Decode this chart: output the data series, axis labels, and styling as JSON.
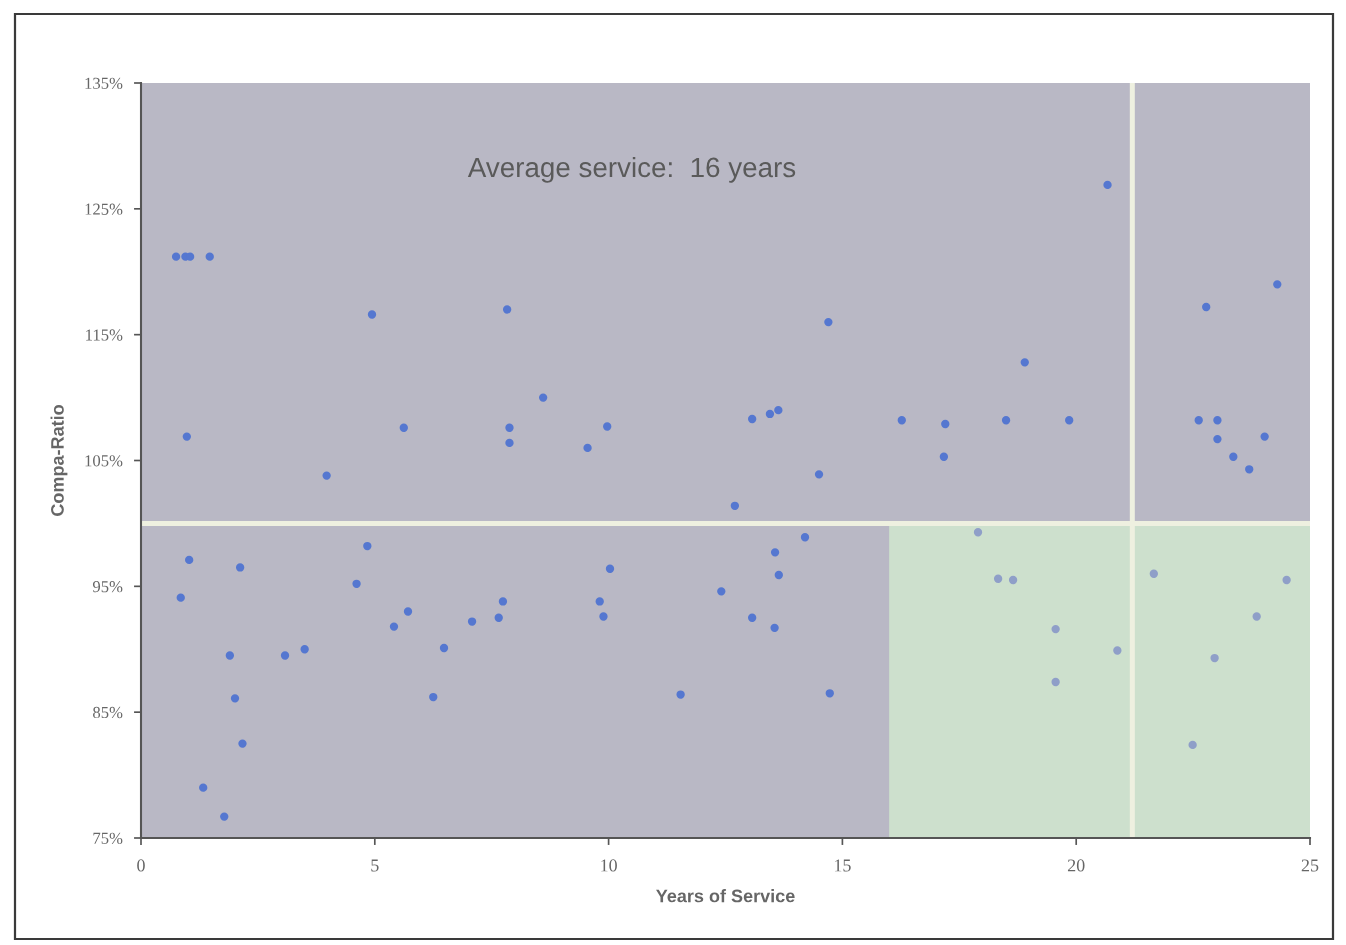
{
  "chart_data": {
    "type": "scatter",
    "xlabel": "Years of Service",
    "ylabel": "Compa-Ratio",
    "annotations": [
      "Average service:  16 years"
    ],
    "xlim": [
      0,
      25
    ],
    "xticks": [
      0,
      5,
      10,
      15,
      20,
      25
    ],
    "ylim": [
      75,
      135
    ],
    "yticks": [
      {
        "value": 75,
        "label": "75%"
      },
      {
        "value": 85,
        "label": "85%"
      },
      {
        "value": 95,
        "label": "95%"
      },
      {
        "value": 105,
        "label": "105%"
      },
      {
        "value": 115,
        "label": "115%"
      },
      {
        "value": 125,
        "label": "125%"
      },
      {
        "value": 135,
        "label": "135%"
      }
    ],
    "marker": "circle",
    "bands": [
      {
        "axis": "x",
        "from": 0,
        "to": 16,
        "color": "#b9b8c5"
      },
      {
        "axis": "y",
        "from": 100,
        "to": 135,
        "color": "#b9b8c5"
      }
    ],
    "ref_lines": [
      {
        "axis": "y",
        "value": 100,
        "color": "#eef0e0"
      },
      {
        "axis": "x",
        "value": 21.2,
        "color": "#eef0e0"
      }
    ],
    "series": [
      {
        "color": "#5577d0",
        "x": [
          0.75,
          0.95,
          1.05,
          1.47,
          4.94,
          7.83,
          8.6,
          5.62,
          7.88,
          7.88,
          9.55,
          9.97,
          0.98,
          3.97,
          1.03,
          2.12,
          0.85,
          4.84,
          4.61,
          5.71,
          5.41,
          7.74,
          7.65,
          7.08,
          9.81,
          9.89,
          10.03,
          1.9,
          3.08,
          3.5,
          6.48,
          2.01,
          6.25,
          2.17,
          1.33,
          1.78,
          14.7,
          18.9,
          13.07,
          13.45,
          13.63,
          16.27,
          17.2,
          17.17,
          18.5,
          19.85,
          14.5,
          12.7,
          14.2,
          13.56,
          13.64,
          12.41,
          13.07,
          13.55,
          11.54,
          14.73,
          20.67,
          24.3,
          22.78,
          22.62,
          23.02,
          23.02,
          24.03,
          23.36,
          23.7
        ],
        "values": [
          121.2,
          121.2,
          121.2,
          121.2,
          116.6,
          117.0,
          110.0,
          107.6,
          107.6,
          106.4,
          106.0,
          107.7,
          106.9,
          103.8,
          97.1,
          96.5,
          94.1,
          98.2,
          95.2,
          93.0,
          91.8,
          93.8,
          92.5,
          92.2,
          93.8,
          92.6,
          96.4,
          89.5,
          89.5,
          90.0,
          90.1,
          86.1,
          86.2,
          82.5,
          79.0,
          76.7,
          116.0,
          112.8,
          108.3,
          108.7,
          109.0,
          108.2,
          107.9,
          105.3,
          108.2,
          108.2,
          103.9,
          101.4,
          98.9,
          97.7,
          95.9,
          94.6,
          92.5,
          91.7,
          86.4,
          86.5,
          126.9,
          119.0,
          117.2,
          108.2,
          108.2,
          106.7,
          106.9,
          105.3,
          104.3
        ]
      },
      {
        "color": "#8f9fc8",
        "x": [
          17.9,
          18.33,
          18.65,
          19.56,
          19.56,
          20.88,
          21.66,
          22.96,
          22.49,
          23.86,
          24.5
        ],
        "values": [
          99.3,
          95.6,
          95.5,
          91.6,
          87.4,
          89.9,
          96.0,
          89.3,
          82.4,
          92.6,
          95.5
        ]
      }
    ]
  }
}
